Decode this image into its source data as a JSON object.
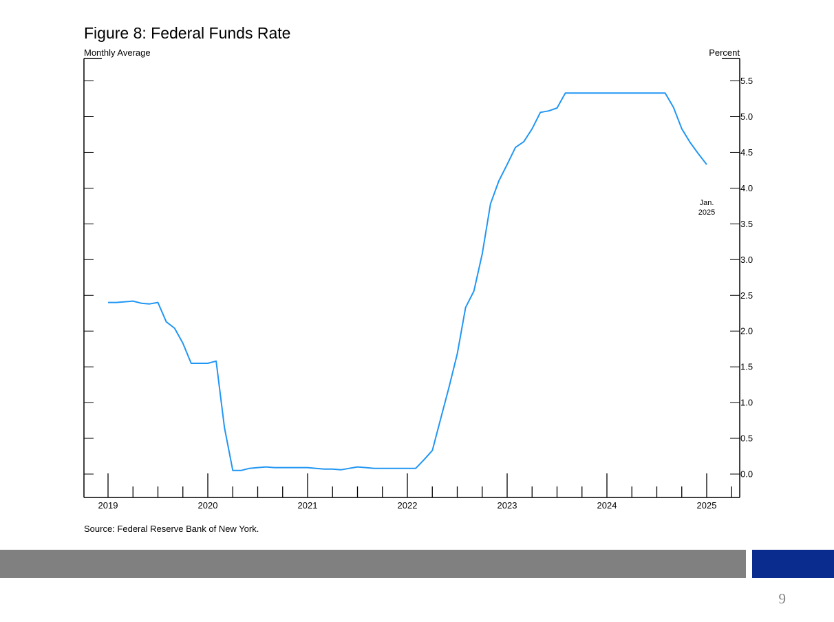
{
  "page": {
    "title": "Figure 8: Federal Funds Rate",
    "left_label": "Monthly Average",
    "right_label": "Percent",
    "source": "Source: Federal Reserve Bank of New York.",
    "page_number": "9",
    "colors": {
      "gray_band": "#808080",
      "blue_band": "#0b2c8f",
      "line": "#2196f3"
    }
  },
  "chart_data": {
    "type": "line",
    "title": "Figure 8: Federal Funds Rate",
    "xlabel": "",
    "ylabel": "Percent",
    "ylim": [
      -0.32,
      5.8
    ],
    "yticks": [
      "0.0",
      "0.5",
      "1.0",
      "1.5",
      "2.0",
      "2.5",
      "3.0",
      "3.5",
      "4.0",
      "4.5",
      "5.0",
      "5.5"
    ],
    "year_labels": [
      "2019",
      "2020",
      "2021",
      "2022",
      "2023",
      "2024",
      "2025"
    ],
    "annotation": {
      "line1": "Jan.",
      "line2": "2025"
    },
    "legend": "none",
    "grid": false,
    "series": [
      {
        "name": "",
        "start": "2019-01",
        "values": [
          2.4,
          2.4,
          2.41,
          2.42,
          2.39,
          2.38,
          2.4,
          2.13,
          2.04,
          1.83,
          1.55,
          1.55,
          1.55,
          1.58,
          0.65,
          0.05,
          0.05,
          0.08,
          0.09,
          0.1,
          0.09,
          0.09,
          0.09,
          0.09,
          0.09,
          0.08,
          0.07,
          0.07,
          0.06,
          0.08,
          0.1,
          0.09,
          0.08,
          0.08,
          0.08,
          0.08,
          0.08,
          0.08,
          0.2,
          0.33,
          0.77,
          1.21,
          1.68,
          2.33,
          2.56,
          3.08,
          3.78,
          4.1,
          4.33,
          4.57,
          4.65,
          4.83,
          5.06,
          5.08,
          5.12,
          5.33,
          5.33,
          5.33,
          5.33,
          5.33,
          5.33,
          5.33,
          5.33,
          5.33,
          5.33,
          5.33,
          5.33,
          5.33,
          5.13,
          4.83,
          4.64,
          4.48,
          4.33
        ]
      }
    ]
  }
}
